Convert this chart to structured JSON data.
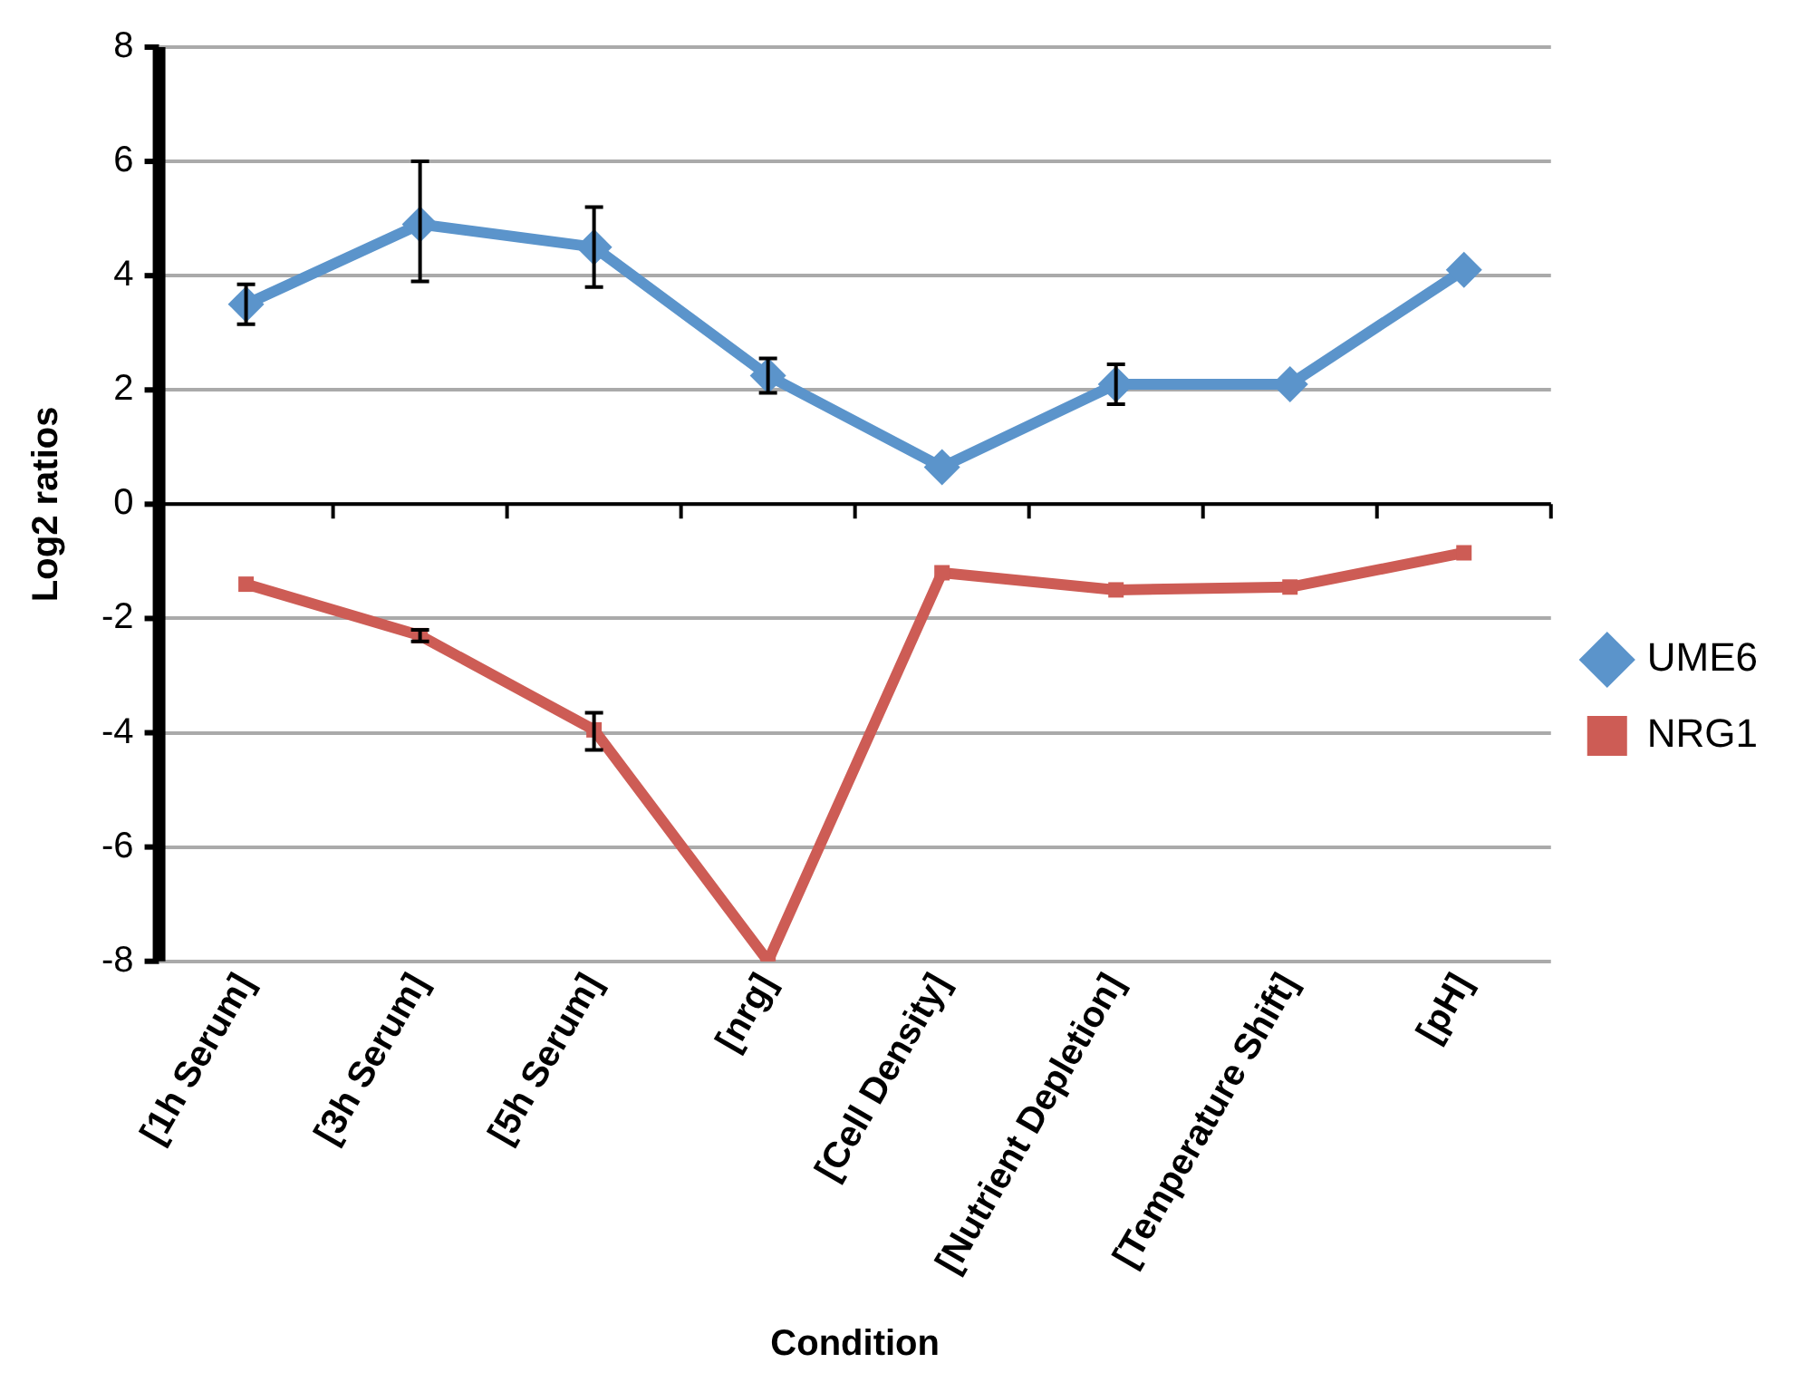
{
  "chart_data": {
    "type": "line",
    "xlabel": "Condition",
    "ylabel": "Log2 ratios",
    "categories": [
      "[1h Serum]",
      "[3h Serum]",
      "[5h Serum]",
      "[nrg]",
      "[Cell Density]",
      "[Nutrient Depletion]",
      "[Temperature Shift]",
      "[pH]"
    ],
    "series": [
      {
        "name": "UME6",
        "color": "#5b94cb",
        "marker": "diamond",
        "values": [
          3.5,
          4.9,
          4.5,
          2.25,
          0.65,
          2.1,
          2.1,
          4.1
        ],
        "errors": [
          0.35,
          [
            3.9,
            6.0
          ],
          [
            3.8,
            5.2
          ],
          0.3,
          null,
          0.35,
          null,
          null
        ]
      },
      {
        "name": "NRG1",
        "color": "#cd5c55",
        "marker": "square",
        "values": [
          -1.4,
          -2.3,
          -3.95,
          -8,
          -1.2,
          -1.5,
          -1.45,
          -0.85
        ],
        "errors": [
          null,
          0.1,
          [
            -4.3,
            -3.65
          ],
          null,
          null,
          null,
          null,
          null
        ]
      }
    ],
    "ylim": [
      -8,
      8
    ],
    "yticks": [
      -8,
      -6,
      -4,
      -2,
      0,
      2,
      4,
      6,
      8
    ],
    "grid": "y",
    "legend": "right",
    "line_style": "solid"
  }
}
